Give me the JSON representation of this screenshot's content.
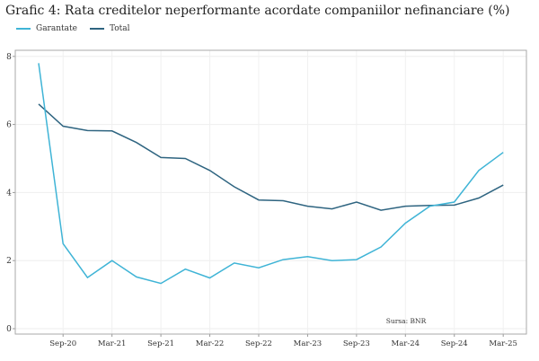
{
  "chart_data": {
    "type": "line",
    "title": "Grafic 4: Rata creditelor neperformante acordate companiilor nefinanciare (%)",
    "x": [
      "Jun-20",
      "Sep-20",
      "Dec-20",
      "Mar-21",
      "Jun-21",
      "Sep-21",
      "Dec-21",
      "Mar-22",
      "Jun-22",
      "Sep-22",
      "Dec-22",
      "Mar-23",
      "Jun-23",
      "Sep-23",
      "Dec-23",
      "Mar-24",
      "Jun-24",
      "Sep-24",
      "Dec-24",
      "Mar-25"
    ],
    "x_tick_labels": [
      "Sep-20",
      "Mar-21",
      "Sep-21",
      "Mar-22",
      "Sep-22",
      "Mar-23",
      "Sep-23",
      "Mar-24",
      "Sep-24",
      "Mar-25"
    ],
    "y_ticks": [
      0,
      2,
      4,
      6,
      8
    ],
    "ylim": [
      -0.3,
      8.3
    ],
    "grid": true,
    "legend": "top-left",
    "series": [
      {
        "name": "Garantate",
        "color": "#3fb4d6",
        "values": [
          7.8,
          2.5,
          1.5,
          2.0,
          1.52,
          1.33,
          1.75,
          1.49,
          1.93,
          1.79,
          2.03,
          2.12,
          2.0,
          2.03,
          2.4,
          3.1,
          3.6,
          3.72,
          4.65,
          5.18
        ]
      },
      {
        "name": "Total",
        "color": "#2e6480",
        "values": [
          6.6,
          5.95,
          5.82,
          5.81,
          5.47,
          5.03,
          5.0,
          4.65,
          4.17,
          3.78,
          3.76,
          3.6,
          3.52,
          3.72,
          3.48,
          3.6,
          3.62,
          3.63,
          3.84,
          4.22
        ]
      }
    ],
    "annotation": "Sursa: BNR"
  }
}
